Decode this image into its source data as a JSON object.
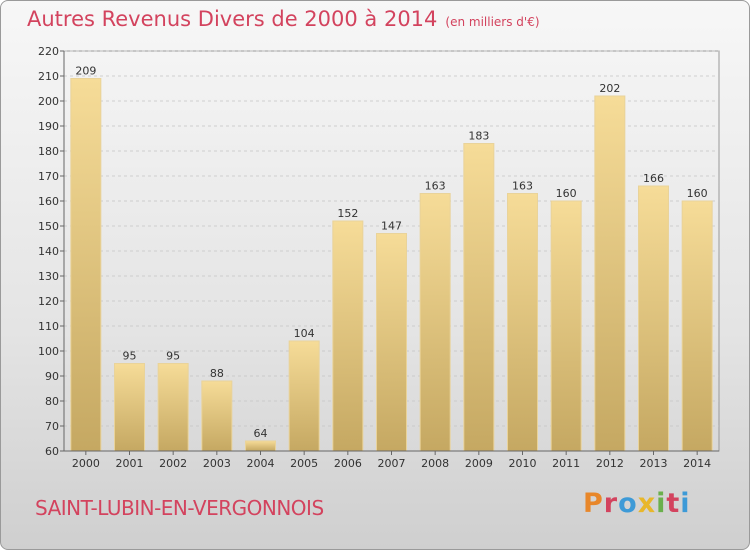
{
  "header": {
    "title": "Autres Revenus Divers de 2000 à 2014",
    "subtitle": "(en milliers d'€)"
  },
  "footer": {
    "place": "SAINT-LUBIN-EN-VERGONNOIS",
    "logo_text": "Proxiti",
    "logo_colors": [
      "#e8872a",
      "#d3435e",
      "#3d9ad7",
      "#e8b72a",
      "#6ab04c",
      "#d3435e",
      "#3d9ad7"
    ]
  },
  "colors": {
    "bar_top": "#f6dc98",
    "bar_bottom": "#c5a862",
    "title": "#d3435e"
  },
  "chart_data": {
    "type": "bar",
    "title": "Autres Revenus Divers de 2000 à 2014",
    "categories": [
      "2000",
      "2001",
      "2002",
      "2003",
      "2004",
      "2005",
      "2006",
      "2007",
      "2008",
      "2009",
      "2010",
      "2011",
      "2012",
      "2013",
      "2014"
    ],
    "values": [
      209,
      95,
      95,
      88,
      64,
      104,
      152,
      147,
      163,
      183,
      163,
      160,
      202,
      166,
      160
    ],
    "ylim": [
      60,
      220
    ],
    "yticks": [
      60,
      70,
      80,
      90,
      100,
      110,
      120,
      130,
      140,
      150,
      160,
      170,
      180,
      190,
      200,
      210,
      220
    ],
    "grid": "horizontal",
    "show_data_labels": true
  }
}
